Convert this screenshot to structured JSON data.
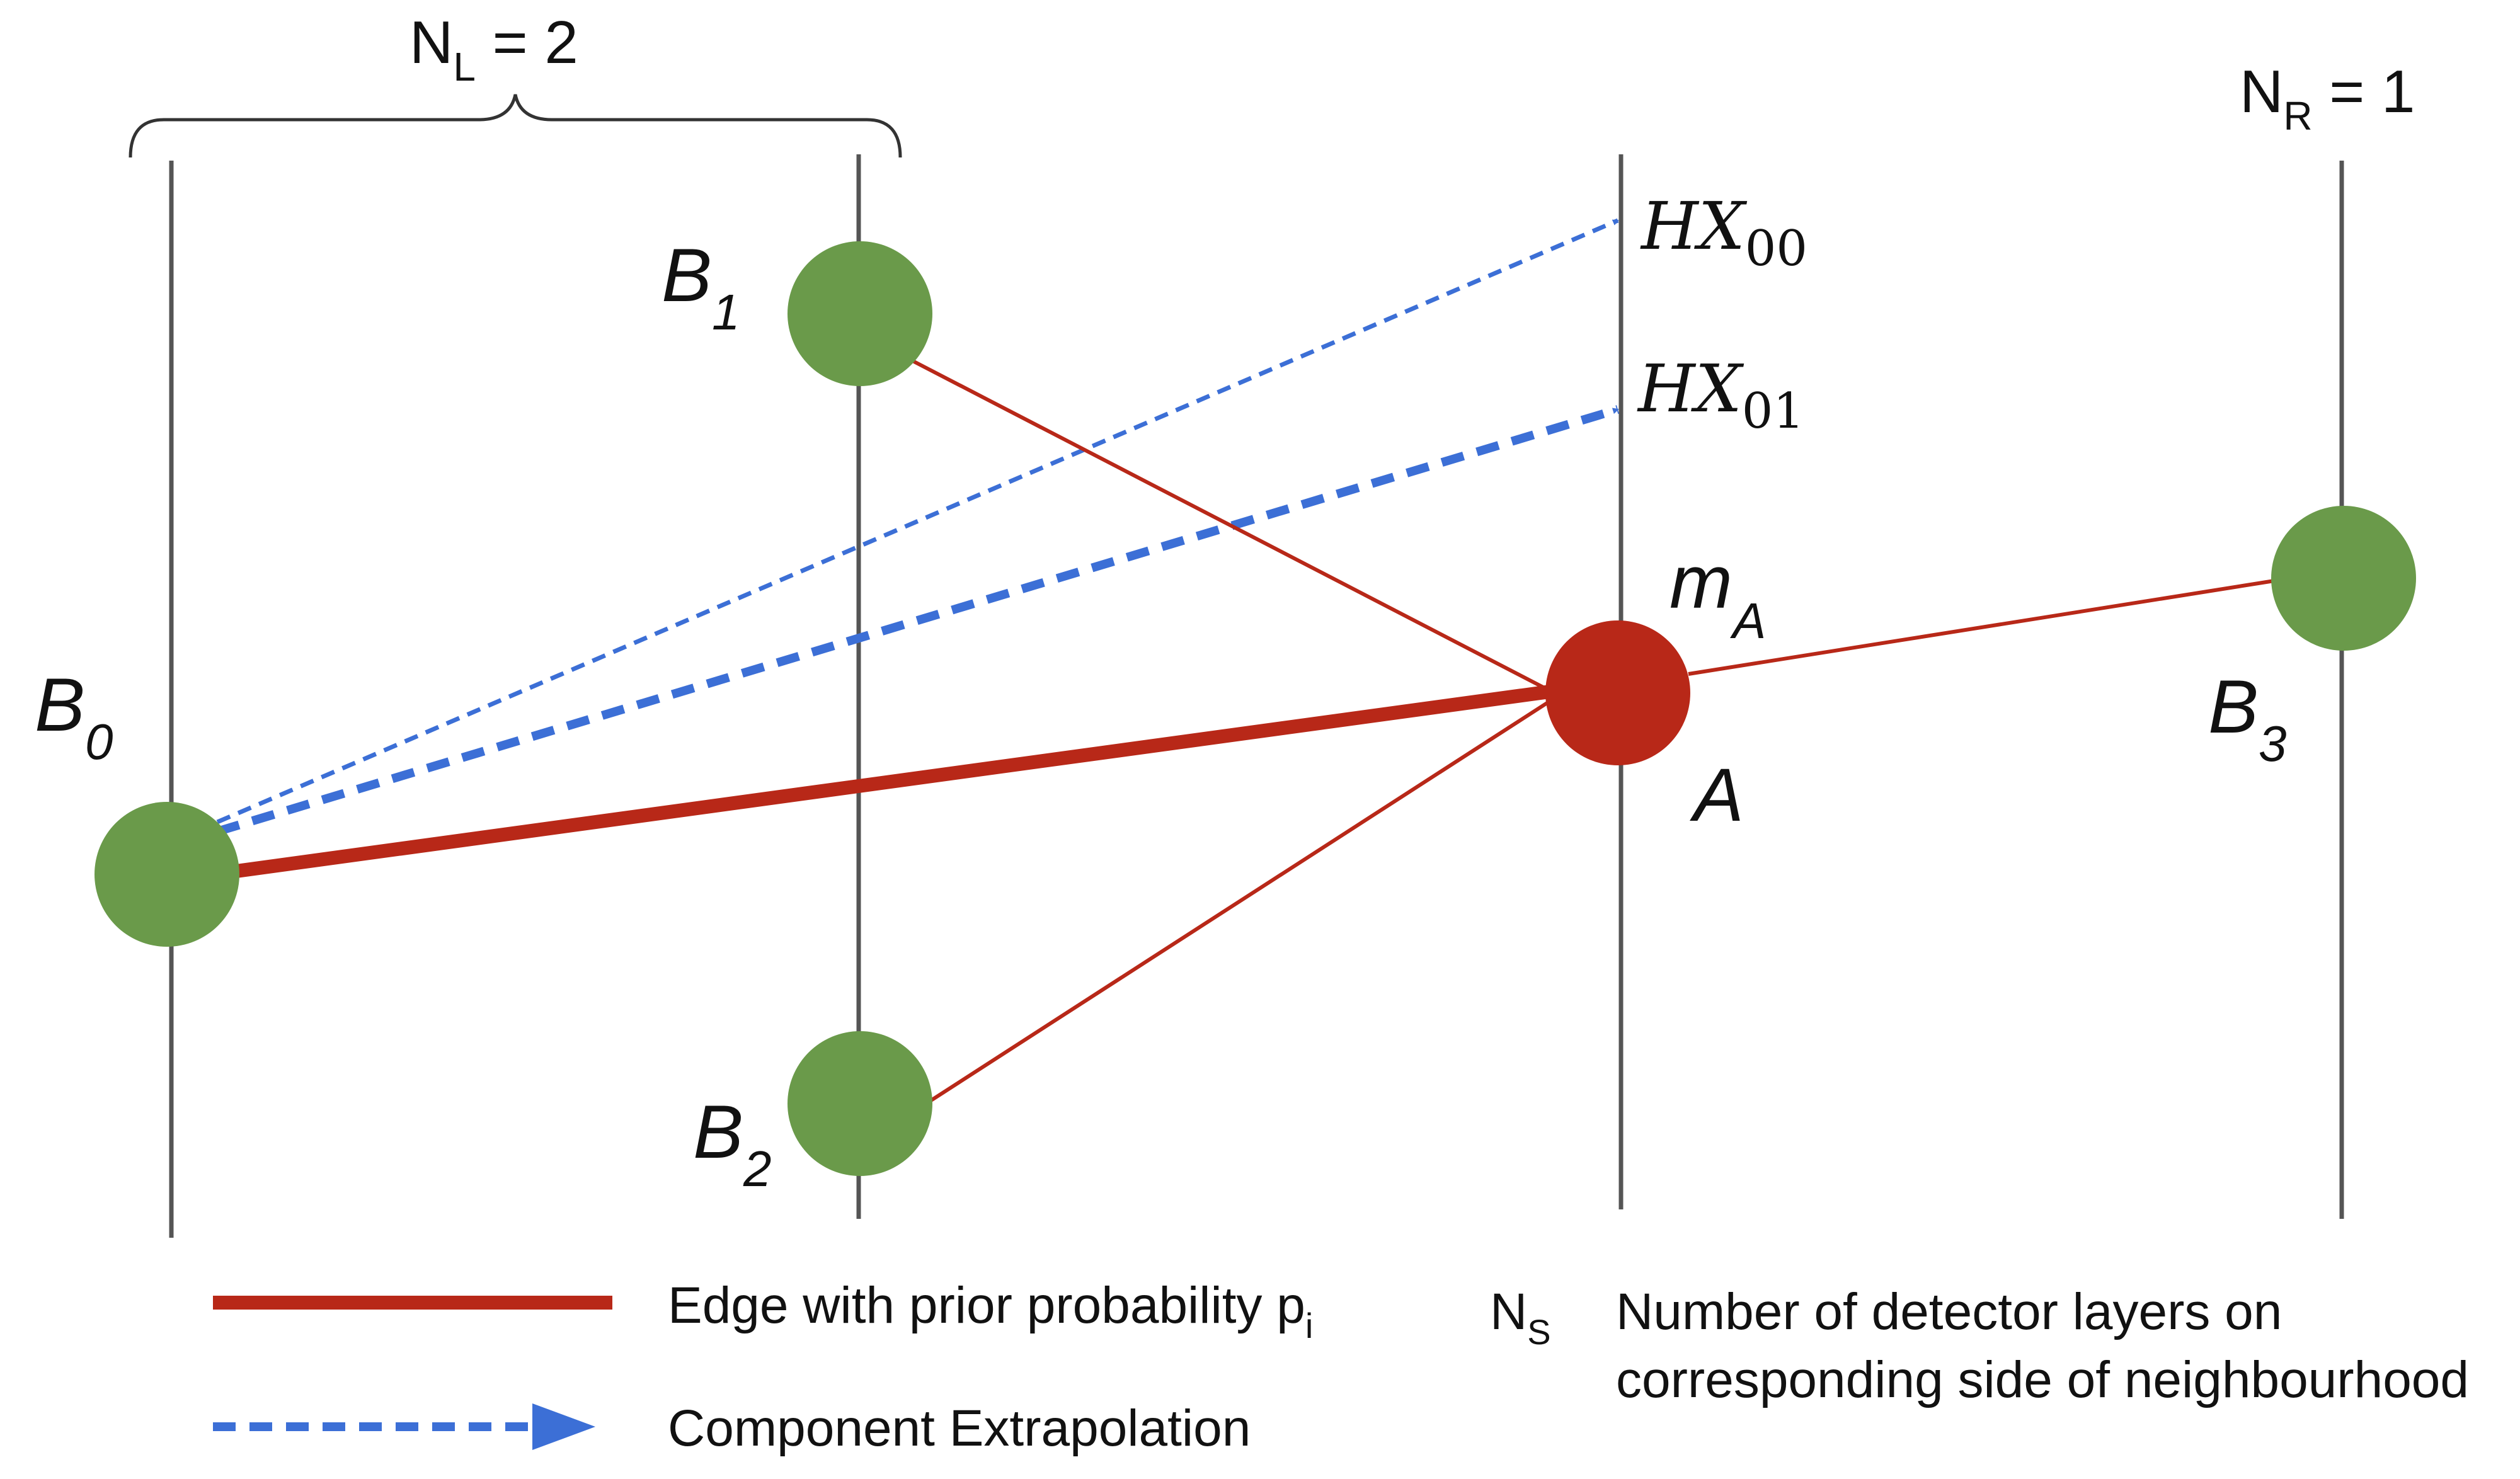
{
  "top_labels": {
    "nl": {
      "main": "N",
      "sub": "L",
      "rest": " = 2"
    },
    "nr": {
      "main": "N",
      "sub": "R",
      "rest": " = 1"
    }
  },
  "nodes": {
    "b0": {
      "main": "B",
      "sub": "0"
    },
    "b1": {
      "main": "B",
      "sub": "1"
    },
    "b2": {
      "main": "B",
      "sub": "2"
    },
    "b3": {
      "main": "B",
      "sub": "3"
    },
    "a": {
      "label": "A",
      "m_main": "m",
      "m_sub": "A"
    }
  },
  "extrapolations": {
    "hx00": {
      "main": "HX",
      "sub": "00"
    },
    "hx01": {
      "main": "HX",
      "sub": "01"
    }
  },
  "legend": {
    "edge": {
      "text": "Edge with prior probability p",
      "sub": "i"
    },
    "extrap": {
      "text": "Component Extrapolation"
    },
    "ns": {
      "main": "N",
      "sub": "S",
      "line1": "Number of detector layers on",
      "line2": "corresponding side of neighbourhood"
    }
  },
  "colors": {
    "node_green": "#6a9a4a",
    "node_red": "#b82818",
    "edge_red": "#b82818",
    "extrap_blue": "#3c6fd6",
    "layer_line": "#555555",
    "text": "#111111"
  }
}
